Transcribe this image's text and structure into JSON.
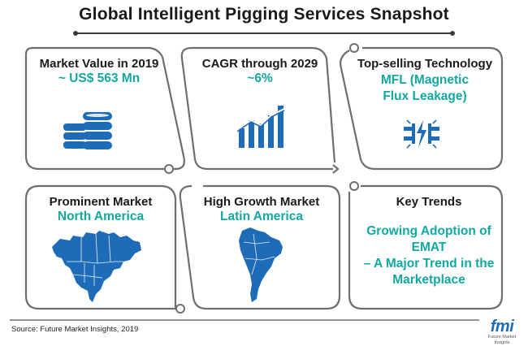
{
  "title": "Global Intelligent Pigging Services Snapshot",
  "colors": {
    "accent": "#12a8a0",
    "icon_blue": "#1e6bb8",
    "frame": "#6e6e6e",
    "text": "#1a1a1a"
  },
  "chart_data": {
    "type": "table",
    "title": "Global Intelligent Pigging Services Snapshot",
    "cards": [
      {
        "label": "Market Value in 2019",
        "value": "~ US$ 563 Mn",
        "icon": "database-coins-icon"
      },
      {
        "label": "CAGR through 2029",
        "value": "~6%",
        "icon": "growth-bar-chart-icon"
      },
      {
        "label": "Top-selling Technology",
        "value_lines": [
          "MFL (Magnetic",
          "Flux Leakage)"
        ],
        "icon": "magnetic-flux-icon"
      },
      {
        "label": "Prominent Market",
        "value": "North America",
        "icon": "north-america-map-icon"
      },
      {
        "label": "High Growth Market",
        "value": "Latin America",
        "icon": "latin-america-map-icon"
      },
      {
        "label": "Key Trends",
        "value_lines": [
          "Growing Adoption of EMAT",
          "– A Major Trend in the",
          "Marketplace"
        ]
      }
    ]
  },
  "footer": {
    "source": "Source: Future Market Insights, 2019",
    "logo_text": "fmi",
    "logo_sub": "Future Market Insights"
  }
}
